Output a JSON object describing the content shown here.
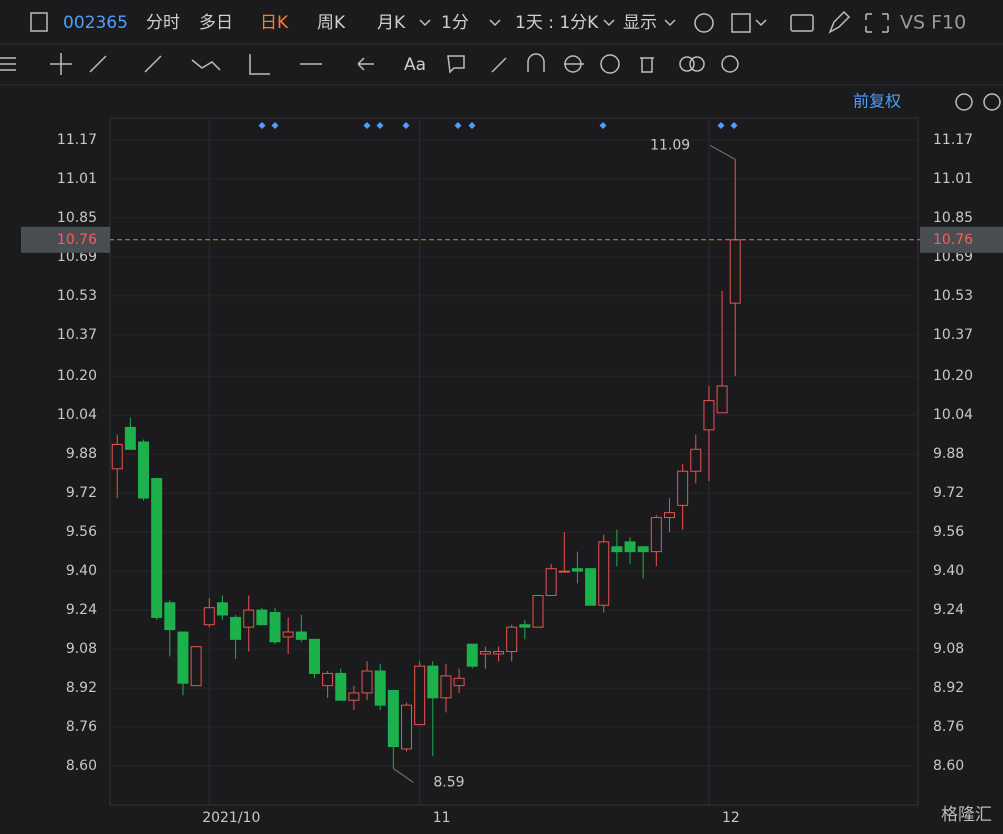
{
  "toolbar": {
    "code": "002365",
    "tabs": [
      "分时",
      "多日",
      "日K",
      "周K",
      "月K",
      "1分"
    ],
    "period": "1天 : 1分K",
    "display": "显示",
    "vs": "VS F10",
    "adjust": "前复权",
    "watermark": "格隆汇"
  },
  "chart_data": {
    "type": "candlestick",
    "open": [
      9.82,
      9.99,
      9.93,
      9.78,
      9.27,
      9.15,
      8.93,
      9.18,
      9.27,
      9.21,
      9.17,
      9.24,
      9.23,
      9.13,
      9.15,
      9.12,
      8.93,
      8.98,
      8.87,
      8.9,
      8.99,
      8.91,
      8.67,
      8.77,
      9.01,
      8.88,
      8.93,
      9.1,
      9.06,
      9.06,
      9.07,
      9.18,
      9.17,
      9.3,
      9.4,
      9.41,
      9.41,
      9.26,
      9.5,
      9.52,
      9.5,
      9.48,
      9.62,
      9.67,
      9.81,
      9.98,
      10.05,
      10.5
    ],
    "high": [
      9.96,
      10.03,
      9.94,
      9.78,
      9.28,
      9.15,
      9.09,
      9.29,
      9.3,
      9.22,
      9.3,
      9.25,
      9.25,
      9.21,
      9.22,
      9.12,
      8.99,
      9.0,
      8.93,
      9.03,
      9.02,
      8.91,
      8.86,
      9.03,
      9.03,
      9.02,
      9.0,
      9.1,
      9.09,
      9.09,
      9.18,
      9.2,
      9.3,
      9.43,
      9.56,
      9.48,
      9.41,
      9.55,
      9.57,
      9.54,
      9.5,
      9.63,
      9.7,
      9.84,
      9.96,
      10.16,
      10.55,
      11.09
    ],
    "low": [
      9.7,
      9.9,
      9.69,
      9.2,
      9.05,
      8.89,
      8.93,
      9.17,
      9.2,
      9.04,
      9.07,
      9.18,
      9.1,
      9.06,
      9.11,
      8.96,
      8.88,
      8.87,
      8.83,
      8.87,
      8.83,
      8.59,
      8.66,
      8.77,
      8.64,
      8.82,
      8.9,
      9.0,
      9.0,
      9.03,
      9.03,
      9.12,
      9.17,
      9.3,
      9.4,
      9.35,
      9.26,
      9.23,
      9.42,
      9.43,
      9.37,
      9.42,
      9.56,
      9.57,
      9.76,
      9.77,
      10.05,
      10.2
    ],
    "close": [
      9.92,
      9.9,
      9.7,
      9.21,
      9.16,
      8.94,
      9.09,
      9.25,
      9.22,
      9.12,
      9.24,
      9.18,
      9.11,
      9.15,
      9.12,
      8.98,
      8.98,
      8.87,
      8.9,
      8.99,
      8.85,
      8.68,
      8.85,
      9.01,
      8.88,
      8.97,
      8.96,
      9.01,
      9.07,
      9.07,
      9.17,
      9.17,
      9.3,
      9.41,
      9.4,
      9.4,
      9.26,
      9.52,
      9.48,
      9.48,
      9.48,
      9.62,
      9.64,
      9.81,
      9.9,
      10.1,
      10.16,
      10.76
    ],
    "up_color": "#e8534f",
    "down_color": "#1db14b",
    "xlim": [
      -0.55,
      60.9
    ],
    "xticks": [
      {
        "value": 7,
        "label": "2021/10"
      },
      {
        "value": 23,
        "label": "11"
      },
      {
        "value": 45,
        "label": "12"
      }
    ],
    "ylim": [
      8.44,
      11.26
    ],
    "yticks": [
      {
        "value": 8.6,
        "label": "8.60"
      },
      {
        "value": 8.76,
        "label": "8.76"
      },
      {
        "value": 8.92,
        "label": "8.92"
      },
      {
        "value": 9.08,
        "label": "9.08"
      },
      {
        "value": 9.24,
        "label": "9.24"
      },
      {
        "value": 9.4,
        "label": "9.40"
      },
      {
        "value": 9.56,
        "label": "9.56"
      },
      {
        "value": 9.72,
        "label": "9.72"
      },
      {
        "value": 9.88,
        "label": "9.88"
      },
      {
        "value": 10.04,
        "label": "10.04"
      },
      {
        "value": 10.2,
        "label": "10.20"
      },
      {
        "value": 10.37,
        "label": "10.37"
      },
      {
        "value": 10.53,
        "label": "10.53"
      },
      {
        "value": 10.69,
        "label": "10.69"
      },
      {
        "value": 10.85,
        "label": "10.85"
      },
      {
        "value": 11.01,
        "label": "11.01"
      },
      {
        "value": 11.17,
        "label": "11.17"
      }
    ],
    "grid": true,
    "last_price": 10.76,
    "annotations": [
      11.09,
      8.59
    ]
  }
}
